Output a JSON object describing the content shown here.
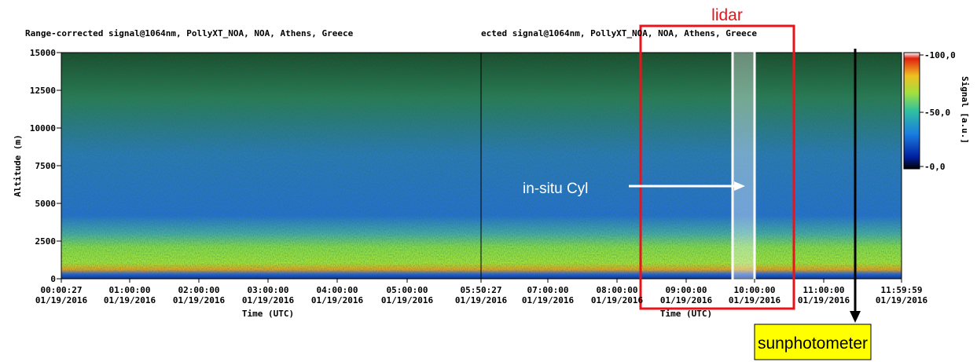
{
  "panels": [
    {
      "title": "Range-corrected signal@1064nm, PollyXT_NOA, NOA, Athens, Greece",
      "x_label": "Time (UTC)",
      "x_ticks": [
        {
          "time": "00:00:27",
          "date": "01/19/2016"
        },
        {
          "time": "01:00:00",
          "date": "01/19/2016"
        },
        {
          "time": "02:00:00",
          "date": "01/19/2016"
        },
        {
          "time": "03:00:00",
          "date": "01/19/2016"
        },
        {
          "time": "04:00:00",
          "date": "01/19/2016"
        },
        {
          "time": "05:00:00",
          "date": "01/19/2016"
        },
        {
          "time": "05:50:27",
          "date": "01/19/2016"
        }
      ]
    },
    {
      "title": "ected signal@1064nm, PollyXT_NOA, NOA, Athens, Greece",
      "x_label": "Time (UTC)",
      "x_ticks": [
        {
          "time": "07:00:00",
          "date": "01/19/2016"
        },
        {
          "time": "08:00:00",
          "date": "01/19/2016"
        },
        {
          "time": "09:00:00",
          "date": "01/19/2016"
        },
        {
          "time": "10:00:00",
          "date": "01/19/2016"
        },
        {
          "time": "11:00:00",
          "date": "01/19/2016"
        },
        {
          "time": "11:59:59",
          "date": "01/19/2016"
        }
      ]
    }
  ],
  "y_axis": {
    "label": "Altitude (m)",
    "ticks": [
      "15000",
      "12500",
      "10000",
      "7500",
      "5000",
      "2500",
      "0"
    ]
  },
  "colorbar": {
    "label": "Signal [a.u.]",
    "ticks": [
      "-100,0",
      "-50,0",
      "-0,0"
    ]
  },
  "annotations": {
    "lidar": "lidar",
    "in_situ": "in-situ Cyl",
    "sunphotometer": "sunphotometer"
  }
}
